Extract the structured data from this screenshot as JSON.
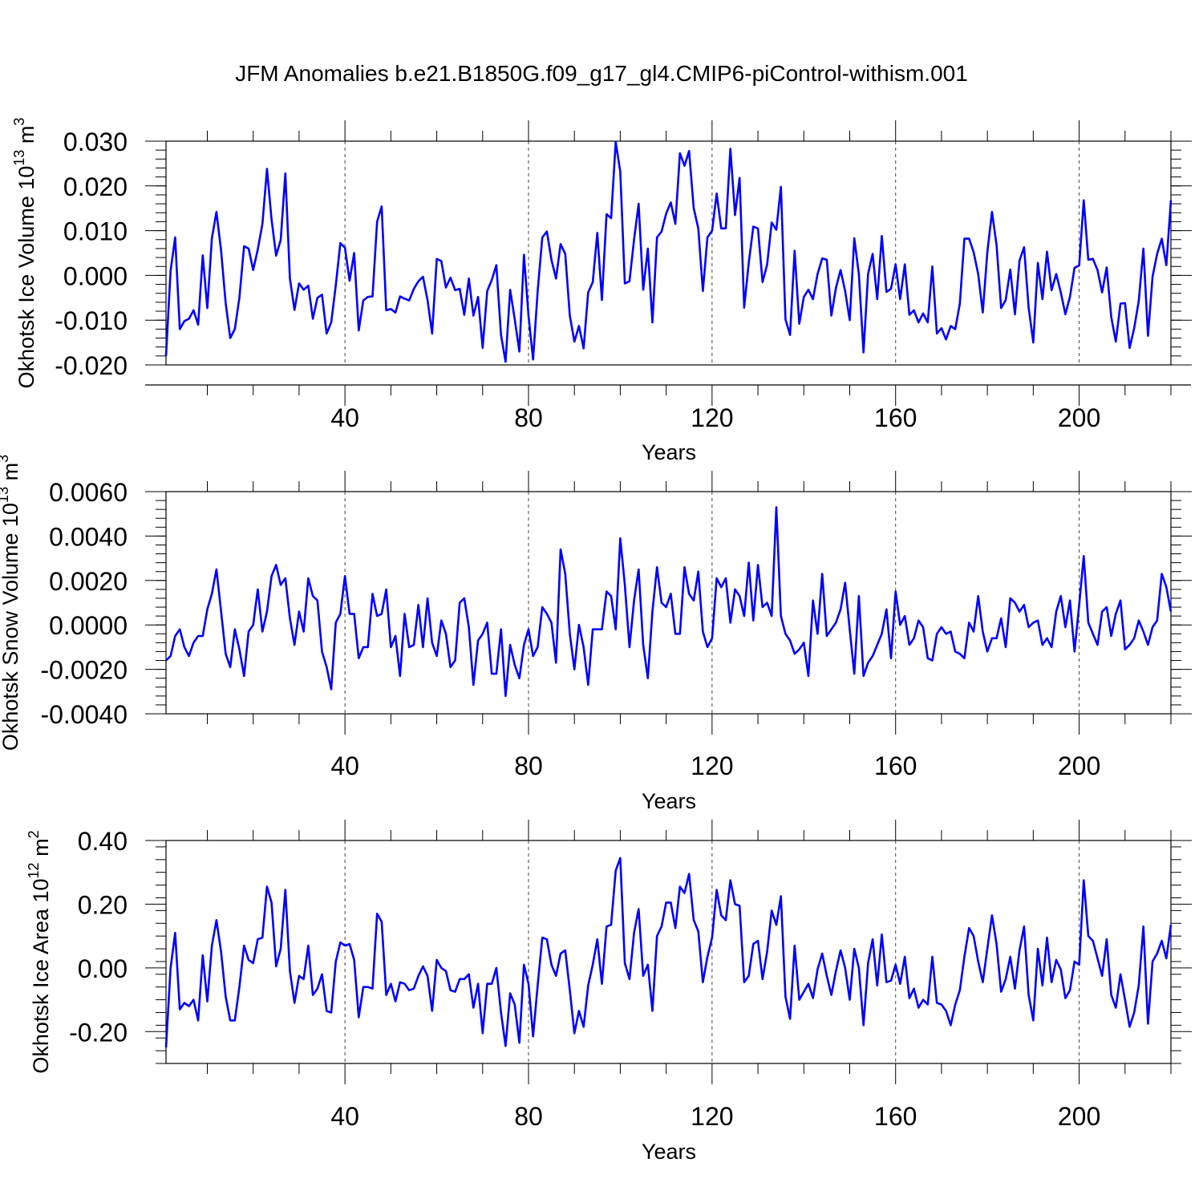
{
  "figure": {
    "title": "JFM Anomalies b.e21.B1850G.f09_g17_gl4.CMIP6-piControl-withism.001"
  },
  "chart_data": [
    {
      "type": "line",
      "id": "ice-volume",
      "ylabel": "Okhotsk Ice Volume 10",
      "ylabel_exp": "13",
      "ylabel_unit": " m",
      "ylabel_unit_exp": "3",
      "xlabel": "Years",
      "xlim": [
        1,
        220
      ],
      "ylim": [
        -0.02,
        0.03
      ],
      "yticks": [
        -0.02,
        -0.01,
        0.0,
        0.01,
        0.02,
        0.03
      ],
      "ytick_labels": [
        "-0.020",
        "-0.010",
        "0.000",
        "0.010",
        "0.020",
        "0.030"
      ],
      "xticks": [
        40,
        80,
        120,
        160,
        200
      ],
      "xtick_labels": [
        "40",
        "80",
        "120",
        "160",
        "200"
      ],
      "grid": "vertical dashed at x ticks",
      "series": [
        {
          "name": "Okhotsk Ice Volume",
          "color": "#0000ff",
          "x_start": 1,
          "values": [
            -0.018,
            0.001,
            0.0085,
            -0.012,
            -0.0102,
            -0.0097,
            -0.0078,
            -0.011,
            0.0045,
            -0.0073,
            0.0083,
            0.0142,
            0.0055,
            -0.0062,
            -0.014,
            -0.012,
            -0.005,
            0.0065,
            0.006,
            0.0012,
            0.0058,
            0.0115,
            0.0238,
            0.0125,
            0.0044,
            0.0079,
            0.0228,
            -0.0007,
            -0.0077,
            -0.0018,
            -0.0032,
            -0.0023,
            -0.0097,
            -0.005,
            -0.0043,
            -0.013,
            -0.0105,
            -0.0022,
            0.0072,
            0.0062,
            -0.0012,
            0.005,
            -0.0123,
            -0.0056,
            -0.0048,
            -0.0047,
            0.012,
            0.0154,
            -0.0078,
            -0.0075,
            -0.0083,
            -0.0047,
            -0.0052,
            -0.0056,
            -0.003,
            -0.0013,
            -0.0003,
            -0.0055,
            -0.013,
            0.0037,
            0.0032,
            -0.0027,
            -0.0005,
            -0.0033,
            -0.003,
            -0.0088,
            -0.0007,
            -0.009,
            -0.0048,
            -0.0162,
            -0.0035,
            -0.001,
            0.0023,
            -0.0133,
            -0.0193,
            -0.0032,
            -0.0098,
            -0.017,
            0.0046,
            -0.009,
            -0.0188,
            -0.0035,
            0.0085,
            0.0098,
            0.0035,
            -0.0007,
            0.007,
            0.0048,
            -0.009,
            -0.0148,
            -0.0113,
            -0.0163,
            -0.0038,
            -0.0015,
            0.0095,
            -0.0055,
            0.0137,
            0.0128,
            0.0298,
            0.0232,
            -0.0018,
            -0.0013,
            0.008,
            0.016,
            -0.0032,
            0.006,
            -0.0105,
            0.0085,
            0.0098,
            0.0138,
            0.0163,
            0.0115,
            0.0273,
            0.0245,
            0.0278,
            0.015,
            0.0105,
            -0.0035,
            0.0085,
            0.01,
            0.0183,
            0.0105,
            0.0105,
            0.0283,
            0.0135,
            0.0218,
            -0.0072,
            0.0028,
            0.0109,
            0.0105,
            -0.0015,
            0.0024,
            0.0118,
            0.0102,
            0.0198,
            -0.0098,
            -0.0133,
            0.0055,
            -0.0108,
            -0.0048,
            -0.0032,
            -0.0053,
            0.0003,
            0.0038,
            0.0035,
            -0.009,
            -0.0028,
            0.0012,
            -0.0035,
            -0.01,
            0.0083,
            0.0003,
            -0.0172,
            0.0003,
            0.0048,
            -0.0053,
            0.0088,
            -0.0037,
            -0.003,
            0.0025,
            -0.0053,
            0.0025,
            -0.0088,
            -0.0078,
            -0.0105,
            -0.0085,
            -0.0105,
            0.002,
            -0.013,
            -0.0118,
            -0.0143,
            -0.0113,
            -0.012,
            -0.0063,
            0.0082,
            0.0082,
            0.0052,
            0.0003,
            -0.0083,
            0.0052,
            0.0142,
            0.0068,
            -0.0073,
            -0.0055,
            0.0013,
            -0.0087,
            0.0033,
            0.0063,
            -0.0072,
            -0.015,
            0.0028,
            -0.0053,
            0.0053,
            -0.0033,
            0.0003,
            -0.0038,
            -0.0087,
            -0.0048,
            0.0017,
            0.0022,
            0.0168,
            0.0035,
            0.0037,
            0.0012,
            -0.0038,
            0.0018,
            -0.0093,
            -0.0148,
            -0.0063,
            -0.0062,
            -0.0162,
            -0.0118,
            -0.0057,
            0.006,
            -0.0135,
            -0.0003,
            0.0048,
            0.0082,
            0.0023,
            0.0168
          ]
        }
      ]
    },
    {
      "type": "line",
      "id": "snow-volume",
      "ylabel": "Okhotsk Snow Volume 10",
      "ylabel_exp": "13",
      "ylabel_unit": " m",
      "ylabel_unit_exp": "3",
      "xlabel": "Years",
      "xlim": [
        1,
        220
      ],
      "ylim": [
        -0.004,
        0.006
      ],
      "yticks": [
        -0.004,
        -0.002,
        0.0,
        0.002,
        0.004,
        0.006
      ],
      "ytick_labels": [
        "-0.0040",
        "-0.0020",
        "0.0000",
        "0.0020",
        "0.0040",
        "0.0060"
      ],
      "xticks": [
        40,
        80,
        120,
        160,
        200
      ],
      "xtick_labels": [
        "40",
        "80",
        "120",
        "160",
        "200"
      ],
      "grid": "vertical dashed at x ticks",
      "series": [
        {
          "name": "Okhotsk Snow Volume",
          "color": "#0000ff",
          "x_start": 1,
          "values": [
            -0.0016,
            -0.0014,
            -0.0005,
            -0.0002,
            -0.001,
            -0.0014,
            -0.0008,
            -0.0005,
            -0.0005,
            0.0007,
            0.0014,
            0.0025,
            0.0006,
            -0.0013,
            -0.0019,
            -0.0002,
            -0.0011,
            -0.0023,
            -0.0003,
            0.0,
            0.0016,
            -0.0003,
            0.0006,
            0.0022,
            0.0027,
            0.0018,
            0.0021,
            0.0003,
            -0.0009,
            0.0006,
            -0.0003,
            0.0021,
            0.0013,
            0.0011,
            -0.0012,
            -0.0019,
            -0.0029,
            0.0001,
            0.0005,
            0.0022,
            0.0005,
            0.0005,
            -0.0015,
            -0.001,
            -0.001,
            0.0014,
            0.0004,
            0.0005,
            0.0016,
            -0.001,
            -0.0005,
            -0.0023,
            0.0005,
            -0.001,
            -0.0009,
            0.0009,
            -0.001,
            0.0012,
            -0.0008,
            -0.0014,
            0.0002,
            -0.0004,
            -0.0019,
            -0.0016,
            0.001,
            0.0012,
            -0.0001,
            -0.0027,
            -0.0007,
            -0.0004,
            0.0001,
            -0.0022,
            -0.0022,
            -0.0002,
            -0.0032,
            -0.0009,
            -0.0018,
            -0.0024,
            -0.0009,
            -0.0002,
            -0.0014,
            -0.001,
            0.0008,
            0.0005,
            0.0001,
            -0.0017,
            0.0034,
            0.0023,
            -0.0004,
            -0.002,
            0.0,
            -0.001,
            -0.0027,
            -0.0002,
            -0.0002,
            -0.0002,
            0.0015,
            0.0013,
            -0.0002,
            0.0039,
            0.0018,
            -0.001,
            0.0011,
            0.0025,
            -0.0009,
            -0.0024,
            0.0006,
            0.0026,
            0.001,
            0.0008,
            0.0014,
            -0.0004,
            -0.0004,
            0.0026,
            0.0014,
            0.0011,
            0.0024,
            -0.0003,
            -0.001,
            -0.0006,
            0.0021,
            0.0017,
            0.0021,
            0.0001,
            0.0016,
            0.0013,
            0.0004,
            0.0028,
            0.0002,
            0.0027,
            0.0008,
            0.001,
            0.0004,
            0.0053,
            0.0004,
            -0.0004,
            -0.0007,
            -0.0013,
            -0.0011,
            -0.0008,
            -0.0023,
            0.0011,
            -0.0004,
            0.0023,
            -0.0005,
            -0.0002,
            0.0001,
            0.0007,
            0.0019,
            -0.0002,
            -0.0022,
            0.0013,
            -0.0023,
            -0.0017,
            -0.0014,
            -0.0009,
            -0.0004,
            0.0007,
            -0.0015,
            0.0015,
            0.0,
            0.0004,
            -0.0009,
            -0.0006,
            0.0002,
            -0.0001,
            -0.0015,
            -0.0016,
            -0.0004,
            -0.0001,
            -0.0004,
            -0.0003,
            -0.0012,
            -0.0013,
            -0.0015,
            0.0001,
            -0.0003,
            0.0013,
            -0.0003,
            -0.0012,
            -0.0006,
            -0.0006,
            0.0003,
            -0.001,
            0.0012,
            0.001,
            0.0006,
            0.0009,
            -0.0001,
            0.0001,
            0.0002,
            -0.0009,
            -0.0006,
            -0.001,
            0.0006,
            0.0013,
            -0.0001,
            0.0011,
            -0.0012,
            0.0009,
            0.0031,
            0.0001,
            -0.0004,
            -0.0009,
            0.0006,
            0.0008,
            -0.0005,
            0.0005,
            0.0011,
            -0.0011,
            -0.0009,
            -0.0006,
            0.0002,
            -0.0003,
            -0.0009,
            -0.0001,
            0.0002,
            0.0023,
            0.0017,
            0.0006
          ]
        }
      ]
    },
    {
      "type": "line",
      "id": "ice-area",
      "ylabel": "Okhotsk Ice Area 10",
      "ylabel_exp": "12",
      "ylabel_unit": " m",
      "ylabel_unit_exp": "2",
      "xlabel": "Years",
      "xlim": [
        1,
        220
      ],
      "ylim": [
        -0.3,
        0.4
      ],
      "yticks": [
        -0.2,
        0.0,
        0.2,
        0.4
      ],
      "ytick_labels": [
        "-0.20",
        "0.00",
        "0.20",
        "0.40"
      ],
      "xticks": [
        40,
        80,
        120,
        160,
        200
      ],
      "xtick_labels": [
        "40",
        "80",
        "120",
        "160",
        "200"
      ],
      "grid": "vertical dashed at x ticks",
      "series": [
        {
          "name": "Okhotsk Ice Area",
          "color": "#0000ff",
          "x_start": 1,
          "values": [
            -0.25,
            0.0,
            0.11,
            -0.13,
            -0.11,
            -0.12,
            -0.1,
            -0.165,
            0.04,
            -0.105,
            0.07,
            0.15,
            0.05,
            -0.09,
            -0.165,
            -0.165,
            -0.06,
            0.07,
            0.025,
            0.015,
            0.09,
            0.095,
            0.255,
            0.205,
            0.005,
            0.06,
            0.245,
            -0.01,
            -0.11,
            -0.025,
            -0.035,
            0.07,
            -0.085,
            -0.065,
            -0.02,
            -0.135,
            -0.14,
            0.02,
            0.08,
            0.07,
            0.075,
            0.025,
            -0.155,
            -0.06,
            -0.06,
            -0.065,
            0.17,
            0.145,
            -0.085,
            -0.05,
            -0.105,
            -0.045,
            -0.05,
            -0.07,
            -0.065,
            -0.025,
            0.005,
            -0.025,
            -0.135,
            0.025,
            0.0,
            -0.01,
            -0.07,
            -0.075,
            -0.035,
            -0.035,
            -0.02,
            -0.125,
            -0.05,
            -0.205,
            -0.05,
            -0.05,
            0.0,
            -0.14,
            -0.245,
            -0.08,
            -0.115,
            -0.235,
            0.01,
            -0.05,
            -0.215,
            -0.055,
            0.095,
            0.09,
            0.01,
            -0.025,
            0.045,
            0.055,
            -0.07,
            -0.205,
            -0.135,
            -0.185,
            -0.055,
            0.01,
            0.09,
            -0.05,
            0.13,
            0.135,
            0.305,
            0.345,
            0.015,
            -0.035,
            0.11,
            0.185,
            -0.025,
            0.01,
            -0.135,
            0.1,
            0.13,
            0.205,
            0.205,
            0.125,
            0.255,
            0.235,
            0.295,
            0.15,
            0.115,
            -0.045,
            0.035,
            0.095,
            0.245,
            0.165,
            0.15,
            0.275,
            0.2,
            0.195,
            -0.045,
            -0.025,
            0.075,
            0.085,
            -0.035,
            0.05,
            0.18,
            0.135,
            0.225,
            -0.09,
            -0.16,
            0.07,
            -0.1,
            -0.075,
            -0.05,
            -0.095,
            -0.005,
            0.045,
            -0.025,
            -0.085,
            -0.01,
            0.055,
            0.0,
            -0.1,
            0.06,
            0.0,
            -0.18,
            0.015,
            0.09,
            -0.055,
            0.105,
            -0.045,
            -0.04,
            0.01,
            -0.05,
            0.035,
            -0.095,
            -0.065,
            -0.125,
            -0.1,
            -0.115,
            0.035,
            -0.11,
            -0.115,
            -0.135,
            -0.18,
            -0.115,
            -0.07,
            0.035,
            0.125,
            0.1,
            0.02,
            -0.045,
            0.06,
            0.165,
            0.075,
            -0.075,
            -0.035,
            0.035,
            -0.065,
            0.055,
            0.13,
            -0.085,
            -0.165,
            0.06,
            -0.055,
            0.095,
            -0.045,
            0.025,
            -0.005,
            -0.095,
            -0.07,
            0.02,
            0.01,
            0.275,
            0.1,
            0.085,
            0.03,
            -0.025,
            0.09,
            -0.085,
            -0.125,
            -0.02,
            -0.1,
            -0.185,
            -0.14,
            -0.055,
            0.13,
            -0.175,
            0.02,
            0.045,
            0.085,
            0.03,
            0.135
          ]
        }
      ]
    }
  ]
}
